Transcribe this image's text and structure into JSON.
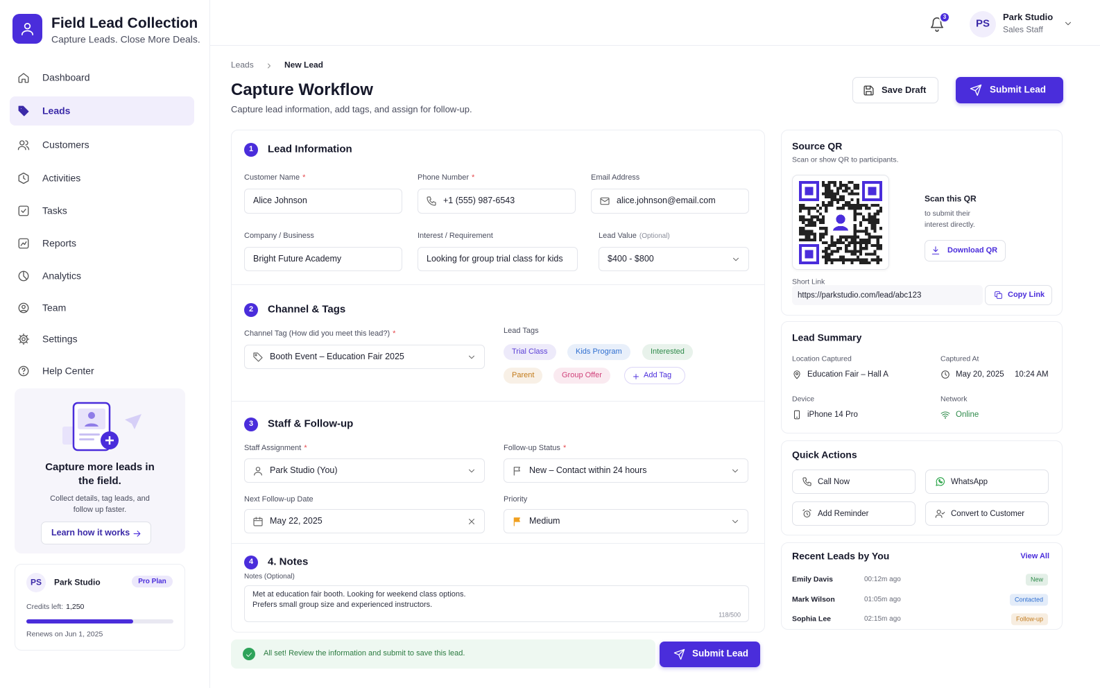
{
  "brand": {
    "title": "Field Lead Collection",
    "tagline": "Capture Leads. Close More Deals."
  },
  "header": {
    "notifications": 3,
    "user": {
      "initials": "PS",
      "name": "Park Studio",
      "role": "Sales Staff"
    }
  },
  "nav": {
    "items": [
      {
        "label": "Dashboard"
      },
      {
        "label": "Leads",
        "active": true
      },
      {
        "label": "Customers"
      },
      {
        "label": "Activities"
      },
      {
        "label": "Tasks"
      },
      {
        "label": "Reports"
      },
      {
        "label": "Analytics"
      },
      {
        "label": "Team"
      },
      {
        "label": "Settings"
      },
      {
        "label": "Help Center"
      }
    ]
  },
  "promo": {
    "title": "Capture more leads in the field.",
    "text": "Collect details, tag leads, and follow up faster.",
    "link": "Learn how it works"
  },
  "account": {
    "initials": "PS",
    "name": "Park Studio",
    "plan": "Pro Plan",
    "credits_label": "Credits left:",
    "credits": "1,250",
    "renews": "Renews on Jun 1, 2025"
  },
  "required_mark": "*",
  "breadcrumb": [
    "Leads",
    "New Lead"
  ],
  "page": {
    "title": "Capture Workflow",
    "subtitle": "Capture lead information, add tags, and assign for follow-up.",
    "actions": {
      "save_draft": "Save Draft",
      "submit": "Submit Lead"
    }
  },
  "form": {
    "sections": [
      {
        "step": 1,
        "title": "Lead Information",
        "fields": [
          {
            "label": "Customer Name",
            "required": true,
            "value": "Alice Johnson"
          },
          {
            "label": "Phone Number",
            "required": true,
            "value": "+1 (555) 987-6543"
          },
          {
            "label": "Email Address",
            "value": "alice.johnson@email.com"
          },
          {
            "label": "Company / Business",
            "value": "Bright Future Academy"
          },
          {
            "label": "Interest / Requirement",
            "value": "Looking for group trial class for kids"
          },
          {
            "label": "Lead Value",
            "hint": "(Optional)",
            "value": "$400 - $800"
          }
        ]
      },
      {
        "step": 2,
        "title": "Channel & Tags",
        "fields": [
          {
            "label": "Channel Tag (How did you meet this lead?)",
            "required": true,
            "value": "Booth Event – Education Fair 2025"
          }
        ],
        "tags_label": "Lead Tags",
        "tags": [
          {
            "name": "Trial Class",
            "color": "#5b3fd6"
          },
          {
            "name": "Kids Program",
            "color": "#2f6fd0"
          },
          {
            "name": "Interested",
            "color": "#2e8a4a"
          },
          {
            "name": "Parent",
            "color": "#c27a1a"
          },
          {
            "name": "Group Offer",
            "color": "#d0427a"
          }
        ],
        "add_tag": "Add Tag"
      },
      {
        "step": 3,
        "title": "Staff & Follow-up",
        "fields": [
          {
            "label": "Staff Assignment",
            "required": true,
            "value": "Park Studio (You)"
          },
          {
            "label": "Follow-up Status",
            "required": true,
            "value": "New – Contact within 24 hours"
          },
          {
            "label": "Next Follow-up Date",
            "value": "May 22, 2025"
          },
          {
            "label": "Priority",
            "value": "Medium"
          }
        ]
      },
      {
        "step": 4,
        "title": "4. Notes",
        "fields": [
          {
            "label": "Notes (Optional)",
            "value": "Met at education fair  booth. Looking for weekend class options.\nPrefers small group size and experienced instructors.",
            "counter": "118/500"
          }
        ]
      }
    ]
  },
  "notice": "All set! Review the information and submit to save this lead.",
  "source_qr": {
    "title": "Source QR",
    "subtitle": "Scan or show QR to participants.",
    "scan_title": "Scan this QR",
    "scan_text": "to submit their interest directly.",
    "download": "Download QR",
    "short_link_label": "Short Link",
    "short_link": "https://parkstudio.com/lead/abc123",
    "copy": "Copy Link"
  },
  "lead_summary": {
    "title": "Lead Summary",
    "items": [
      {
        "label": "Location Captured",
        "value": "Education Fair – Hall A"
      },
      {
        "label": "Captured At",
        "value": "May 20, 2025",
        "time": "10:24 AM"
      },
      {
        "label": "Device",
        "value": "iPhone 14 Pro"
      },
      {
        "label": "Network",
        "value": "Online"
      }
    ]
  },
  "quick_actions": {
    "title": "Quick Actions",
    "actions": [
      "Call Now",
      "WhatsApp",
      "Add Reminder",
      "Convert to Customer"
    ]
  },
  "recent_leads": {
    "title": "Recent Leads by You",
    "view_all": "View All",
    "rows": [
      {
        "name": "Emily Davis",
        "time": "00:12m ago",
        "status": "New",
        "status_color": "#2e8a4a"
      },
      {
        "name": "Mark Wilson",
        "time": "01:05m ago",
        "status": "Contacted",
        "status_color": "#2f6fd0"
      },
      {
        "name": "Sophia Lee",
        "time": "02:15m ago",
        "status": "Follow-up",
        "status_color": "#c27a1a"
      }
    ]
  }
}
